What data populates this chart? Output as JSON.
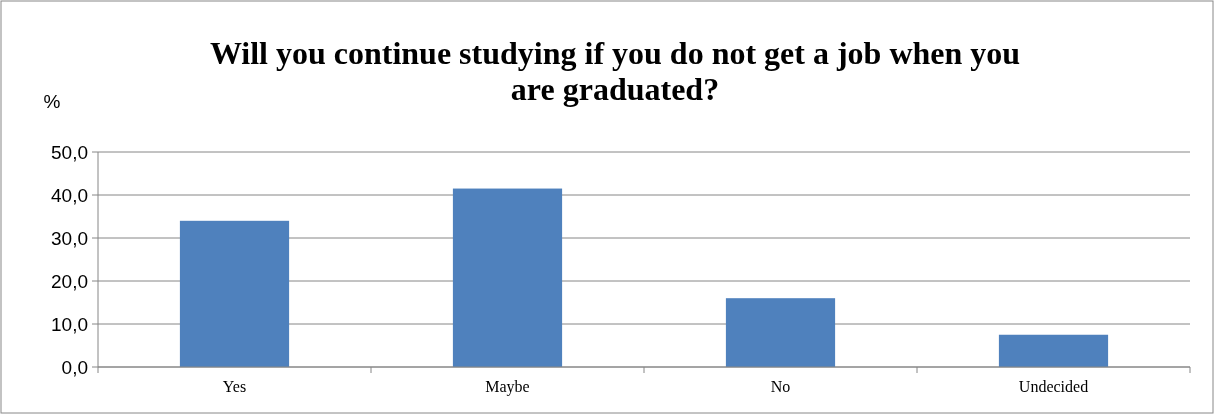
{
  "chart_data": {
    "type": "bar",
    "title": "Will you continue studying if you do not get a job when you are graduated?",
    "ylabel": "%",
    "categories": [
      "Yes",
      "Maybe",
      "No",
      "Undecided"
    ],
    "values": [
      34.0,
      41.5,
      16.0,
      7.5
    ],
    "color": "#4f81bd",
    "ylim": [
      0,
      50
    ],
    "yticks": [
      {
        "value": 0,
        "label": "0,0"
      },
      {
        "value": 10,
        "label": "10,0"
      },
      {
        "value": 20,
        "label": "20,0"
      },
      {
        "value": 30,
        "label": "30,0"
      },
      {
        "value": 40,
        "label": "40,0"
      },
      {
        "value": 50,
        "label": "50,0"
      }
    ],
    "grid": "y"
  }
}
